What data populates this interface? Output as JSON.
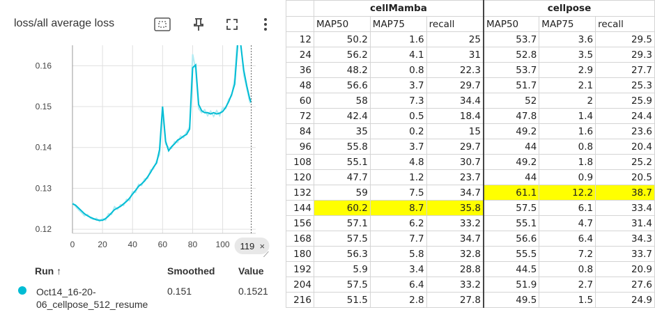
{
  "panel": {
    "title": "loss/all average loss",
    "toolbar_icons": [
      "fit-domain-icon",
      "pin-icon",
      "fullscreen-icon",
      "more-vert-icon"
    ]
  },
  "chart_data": {
    "type": "line",
    "title": "loss/all average loss",
    "xlim": [
      0,
      122
    ],
    "ylim": [
      0.119,
      0.165
    ],
    "x_ticks": [
      "0",
      "20",
      "40",
      "60",
      "80",
      "100"
    ],
    "y_ticks": [
      "0.12",
      "0.13",
      "0.14",
      "0.15",
      "0.16"
    ],
    "selected_step": "119",
    "series": [
      {
        "name": "Oct14_16-20-06_cellpose_512_resume",
        "color": "#00bcd4",
        "raw_color": "#b2ebf2",
        "x": [
          0,
          2,
          4,
          6,
          8,
          10,
          12,
          14,
          16,
          18,
          20,
          22,
          24,
          26,
          28,
          30,
          32,
          34,
          36,
          38,
          40,
          42,
          44,
          46,
          48,
          50,
          52,
          54,
          56,
          58,
          60,
          62,
          64,
          66,
          68,
          70,
          72,
          74,
          76,
          78,
          80,
          82,
          84,
          86,
          88,
          90,
          92,
          94,
          96,
          98,
          100,
          102,
          104,
          106,
          108,
          110,
          112,
          114,
          116,
          118,
          119
        ],
        "smoothed": [
          0.1262,
          0.1259,
          0.1252,
          0.1245,
          0.1238,
          0.1233,
          0.1229,
          0.1226,
          0.1223,
          0.1222,
          0.1222,
          0.1226,
          0.1232,
          0.124,
          0.1248,
          0.1252,
          0.1256,
          0.1262,
          0.1268,
          0.1276,
          0.1286,
          0.1295,
          0.1305,
          0.1311,
          0.1318,
          0.1328,
          0.1339,
          0.1352,
          0.1362,
          0.1395,
          0.15,
          0.1415,
          0.1392,
          0.1402,
          0.1409,
          0.1418,
          0.1422,
          0.1428,
          0.1432,
          0.1445,
          0.1595,
          0.1602,
          0.1505,
          0.149,
          0.1485,
          0.1485,
          0.1482,
          0.1485,
          0.1482,
          0.1484,
          0.1488,
          0.1498,
          0.1512,
          0.153,
          0.1555,
          0.1652,
          0.1652,
          0.1589,
          0.1551,
          0.1519,
          0.151
        ],
        "raw": [
          0.1266,
          0.1256,
          0.1248,
          0.1241,
          0.1233,
          0.1236,
          0.1227,
          0.1224,
          0.1227,
          0.1219,
          0.1226,
          0.1222,
          0.1238,
          0.1236,
          0.1255,
          0.1249,
          0.126,
          0.1258,
          0.1273,
          0.127,
          0.1292,
          0.129,
          0.131,
          0.1307,
          0.1323,
          0.1324,
          0.1345,
          0.1348,
          0.1368,
          0.1382,
          0.1492,
          0.1408,
          0.14,
          0.1398,
          0.1414,
          0.1412,
          0.1428,
          0.1424,
          0.1438,
          0.145,
          0.1628,
          0.159,
          0.1495,
          0.1485,
          0.1492,
          0.1478,
          0.1489,
          0.1476,
          0.149,
          0.1478,
          0.1497,
          0.1495,
          0.1518,
          0.1526,
          0.157,
          0.168,
          0.166,
          0.1578,
          0.1545,
          0.1512,
          0.1521
        ]
      }
    ]
  },
  "legend": {
    "col_run": "Run ↑",
    "col_smoothed": "Smoothed",
    "col_value": "Value",
    "run_name": "Oct14_16-20-06_cellpose_512_resume",
    "smoothed_value": "0.151",
    "value": "0.1521"
  },
  "table": {
    "groups": [
      "cellMamba",
      "cellpose"
    ],
    "columns": [
      "MAP50",
      "MAP75",
      "recall",
      "MAP50",
      "MAP75",
      "recall"
    ],
    "rows": [
      {
        "epoch": "12",
        "vals": [
          "50.2",
          "1.6",
          "25",
          "53.7",
          "3.6",
          "29.5"
        ]
      },
      {
        "epoch": "24",
        "vals": [
          "56.2",
          "4.1",
          "31",
          "52.8",
          "3.5",
          "29.3"
        ]
      },
      {
        "epoch": "36",
        "vals": [
          "48.2",
          "0.8",
          "22.3",
          "53.7",
          "2.9",
          "27.7"
        ]
      },
      {
        "epoch": "48",
        "vals": [
          "56.6",
          "3.7",
          "29.7",
          "51.7",
          "2.1",
          "25.3"
        ]
      },
      {
        "epoch": "60",
        "vals": [
          "58",
          "7.3",
          "34.4",
          "52",
          "2",
          "25.9"
        ]
      },
      {
        "epoch": "72",
        "vals": [
          "42.4",
          "0.5",
          "18.4",
          "47.8",
          "1.4",
          "24.4"
        ]
      },
      {
        "epoch": "84",
        "vals": [
          "35",
          "0.2",
          "15",
          "49.2",
          "1.6",
          "23.6"
        ]
      },
      {
        "epoch": "96",
        "vals": [
          "55.8",
          "3.7",
          "29.7",
          "44",
          "0.8",
          "20.4"
        ]
      },
      {
        "epoch": "108",
        "vals": [
          "55.1",
          "4.8",
          "30.7",
          "49.2",
          "1.8",
          "25.2"
        ]
      },
      {
        "epoch": "120",
        "vals": [
          "47.7",
          "1.2",
          "23.7",
          "44",
          "0.9",
          "20.5"
        ]
      },
      {
        "epoch": "132",
        "vals": [
          "59",
          "7.5",
          "34.7",
          "61.1",
          "12.2",
          "38.7"
        ],
        "hl": [
          false,
          false,
          false,
          true,
          true,
          true
        ]
      },
      {
        "epoch": "144",
        "vals": [
          "60.2",
          "8.7",
          "35.8",
          "57.5",
          "6.1",
          "33.4"
        ],
        "hl": [
          true,
          true,
          true,
          false,
          false,
          false
        ]
      },
      {
        "epoch": "156",
        "vals": [
          "57.1",
          "6.2",
          "33.2",
          "55.1",
          "4.7",
          "31.4"
        ]
      },
      {
        "epoch": "168",
        "vals": [
          "57.5",
          "7.7",
          "34.7",
          "56.6",
          "6.4",
          "34.3"
        ]
      },
      {
        "epoch": "180",
        "vals": [
          "56.3",
          "5.8",
          "32.8",
          "55.5",
          "7.2",
          "33.7"
        ]
      },
      {
        "epoch": "192",
        "vals": [
          "5.9",
          "3.4",
          "28.8",
          "44.5",
          "0.8",
          "20.9"
        ]
      },
      {
        "epoch": "204",
        "vals": [
          "57.5",
          "6.4",
          "33.2",
          "51.9",
          "2.7",
          "27.6"
        ]
      },
      {
        "epoch": "216",
        "vals": [
          "51.5",
          "2.8",
          "27.8",
          "49.5",
          "1.5",
          "24.9"
        ]
      }
    ],
    "highlight_color": "#ffff00"
  }
}
